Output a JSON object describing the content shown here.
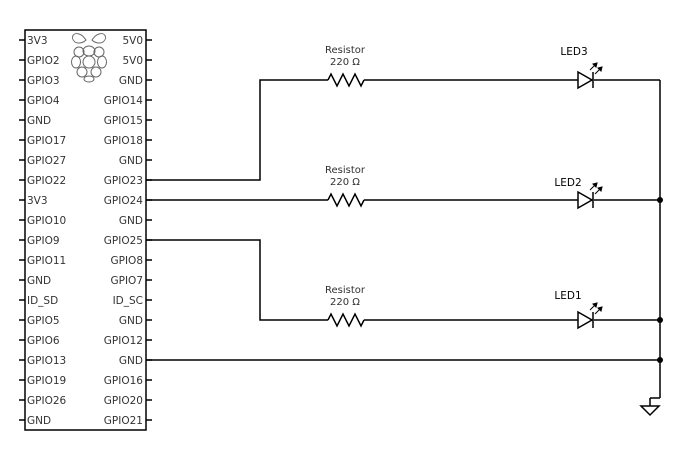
{
  "board": {
    "left_pins": [
      "3V3",
      "GPIO2",
      "GPIO3",
      "GPIO4",
      "GND",
      "GPIO17",
      "GPIO27",
      "GPIO22",
      "3V3",
      "GPIO10",
      "GPIO9",
      "GPIO11",
      "GND",
      "ID_SD",
      "GPIO5",
      "GPIO6",
      "GPIO13",
      "GPIO19",
      "GPIO26",
      "GND"
    ],
    "right_pins": [
      "5V0",
      "5V0",
      "GND",
      "GPIO14",
      "GPIO15",
      "GPIO18",
      "GND",
      "GPIO23",
      "GPIO24",
      "GND",
      "GPIO25",
      "GPIO8",
      "GPIO7",
      "ID_SC",
      "GND",
      "GPIO12",
      "GND",
      "GPIO16",
      "GPIO20",
      "GPIO21"
    ],
    "logo": "raspberry-pi-logo"
  },
  "resistors": [
    {
      "name": "Resistor",
      "value": "220 Ω"
    },
    {
      "name": "Resistor",
      "value": "220 Ω"
    },
    {
      "name": "Resistor",
      "value": "220 Ω"
    }
  ],
  "leds": [
    {
      "label": "LED3"
    },
    {
      "label": "LED2"
    },
    {
      "label": "LED1"
    }
  ],
  "ground_symbol": "ground-icon",
  "colors": {
    "wire": "#000000",
    "text": "#333333",
    "background": "#ffffff"
  }
}
